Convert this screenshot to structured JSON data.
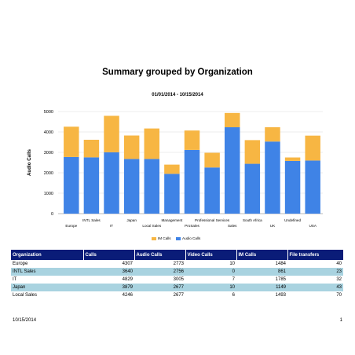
{
  "report": {
    "title": "Summary grouped by Organization",
    "date_range": "01/01/2014 - 10/15/2014"
  },
  "chart_data": {
    "type": "bar",
    "stacked": true,
    "categories": [
      "Europe",
      "INTL Sales",
      "IT",
      "Japan",
      "Local Sales",
      "Management",
      "ProSales",
      "Professional Services",
      "Sales",
      "South Africa",
      "UK",
      "Undefined",
      "USA"
    ],
    "series": [
      {
        "name": "Audio Calls",
        "color": "#3f83e6",
        "values": [
          2773,
          2756,
          3005,
          2677,
          2677,
          1950,
          3120,
          2260,
          4230,
          2440,
          3530,
          2580,
          2600
        ]
      },
      {
        "name": "IM Calls",
        "color": "#f7b643",
        "values": [
          1484,
          861,
          1785,
          1149,
          1493,
          450,
          950,
          720,
          700,
          1160,
          700,
          170,
          1220
        ]
      }
    ],
    "ylabel": "Audio Calls",
    "xlabel": "",
    "ylim": [
      0,
      5000
    ],
    "yticks": [
      0,
      1000,
      2000,
      3000,
      4000,
      5000
    ],
    "grid": true,
    "legend_position": "bottom"
  },
  "table": {
    "headers": [
      "Organization",
      "Calls",
      "Audio Calls",
      "Video Calls",
      "IM Calls",
      "File transfers"
    ],
    "rows": [
      [
        "Europe",
        "4307",
        "2773",
        "10",
        "1484",
        "40"
      ],
      [
        "INTL Sales",
        "3640",
        "2756",
        "0",
        "861",
        "23"
      ],
      [
        "IT",
        "4829",
        "3005",
        "7",
        "1785",
        "32"
      ],
      [
        "Japan",
        "3879",
        "2677",
        "10",
        "1149",
        "43"
      ],
      [
        "Local Sales",
        "4246",
        "2677",
        "6",
        "1493",
        "70"
      ]
    ]
  },
  "footer": {
    "date": "10/15/2014",
    "page": "1"
  }
}
